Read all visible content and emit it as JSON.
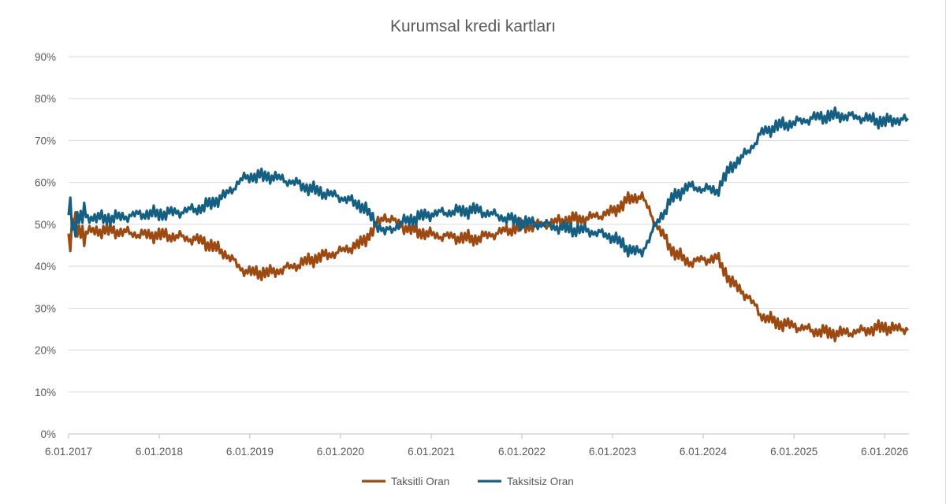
{
  "chart_data": {
    "type": "line",
    "title": "Kurumsal kredi kartları",
    "xlabel": "",
    "ylabel": "",
    "x_tick_labels": [
      "6.01.2017",
      "6.01.2018",
      "6.01.2019",
      "6.01.2020",
      "6.01.2021",
      "6.01.2022",
      "6.01.2023",
      "6.01.2024",
      "6.01.2025",
      "6.01.2026"
    ],
    "y_tick_labels": [
      "0%",
      "10%",
      "20%",
      "30%",
      "40%",
      "50%",
      "60%",
      "70%",
      "80%",
      "90%"
    ],
    "ylim": [
      0,
      90
    ],
    "xlim": [
      "2017-01-06",
      "2026-04-14"
    ],
    "grid": "horizontal",
    "legend_position": "bottom",
    "x": [
      "2017-01-06",
      "2017-01-25",
      "2017-02-15",
      "2017-03-15",
      "2017-05-01",
      "2017-07-01",
      "2017-09-01",
      "2017-11-01",
      "2018-01-06",
      "2018-04-01",
      "2018-07-01",
      "2018-10-01",
      "2018-12-01",
      "2019-01-06",
      "2019-04-01",
      "2019-07-01",
      "2019-10-01",
      "2020-01-06",
      "2020-04-01",
      "2020-07-01",
      "2020-10-01",
      "2021-01-06",
      "2021-04-01",
      "2021-07-01",
      "2021-10-01",
      "2022-01-06",
      "2022-04-01",
      "2022-07-01",
      "2022-10-01",
      "2023-01-06",
      "2023-03-01",
      "2023-05-01",
      "2023-07-01",
      "2023-09-01",
      "2023-11-01",
      "2024-01-06",
      "2024-03-01",
      "2024-05-01",
      "2024-07-01",
      "2024-09-01",
      "2024-11-01",
      "2025-01-06",
      "2025-04-01",
      "2025-07-01",
      "2025-10-01",
      "2026-01-06",
      "2026-03-01",
      "2026-04-14"
    ],
    "series": [
      {
        "name": "Taksitli Oran",
        "color": "#9c4a12",
        "values": [
          45,
          48.5,
          50,
          48,
          48.5,
          48.5,
          48,
          47.5,
          47.5,
          47,
          46,
          43,
          39.5,
          38.5,
          38.5,
          40,
          42,
          43.5,
          45.5,
          52,
          49,
          47.5,
          47,
          46.5,
          48,
          49.5,
          50,
          51,
          51.5,
          53,
          55.5,
          57,
          50,
          44,
          41,
          41.5,
          42,
          36,
          33,
          28,
          26.5,
          25.8,
          24.5,
          24,
          24.5,
          25.5,
          25,
          25.2
        ]
      },
      {
        "name": "Taksitsiz Oran",
        "color": "#156082",
        "values": [
          55,
          51.5,
          50,
          52,
          51.5,
          51.5,
          52,
          52.5,
          52.5,
          53,
          54,
          57,
          60.5,
          61.5,
          61.5,
          60,
          58,
          56.5,
          54.5,
          48,
          51,
          52.5,
          53,
          53.5,
          52,
          50.5,
          50,
          49,
          48.5,
          47,
          44.5,
          43,
          50,
          56,
          59,
          58.5,
          58,
          64,
          67,
          72,
          73.5,
          74.2,
          75.5,
          76,
          75.5,
          74.5,
          75,
          74.8
        ]
      }
    ]
  }
}
